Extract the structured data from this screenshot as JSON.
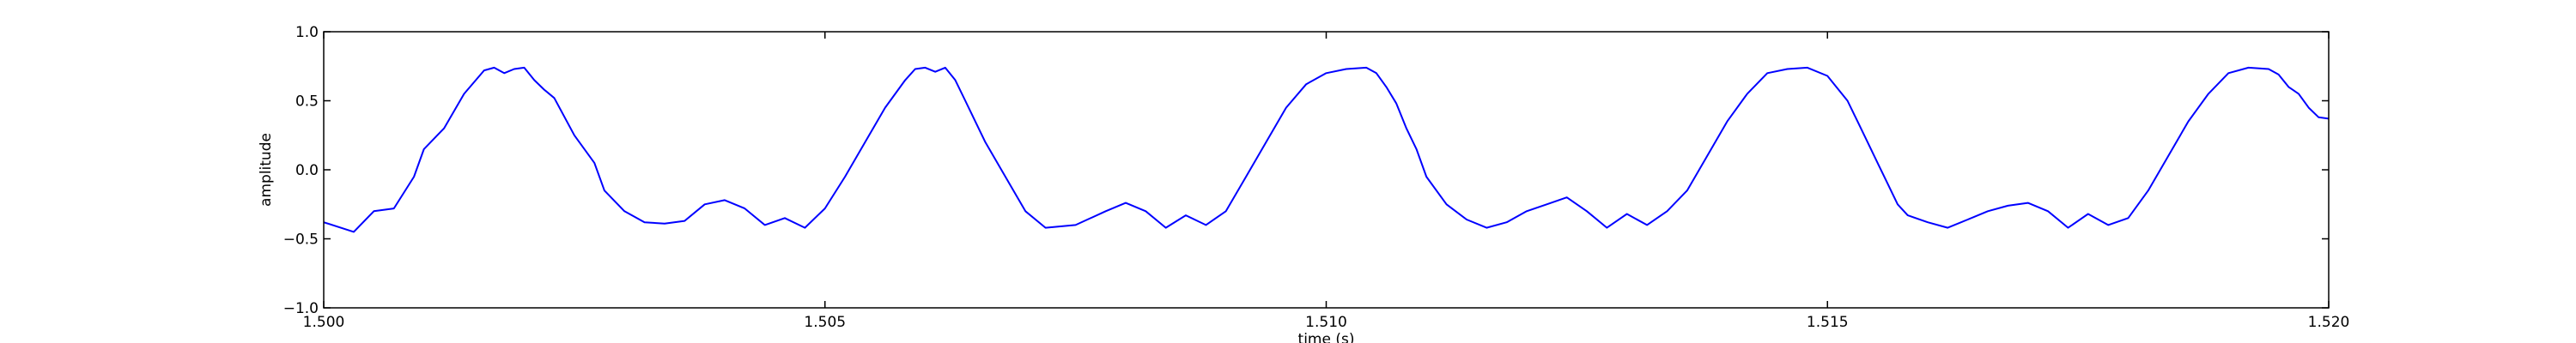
{
  "chart_data": {
    "type": "line",
    "title": "",
    "xlabel": "time (s)",
    "ylabel": "amplitude",
    "xlim": [
      1.5,
      1.52
    ],
    "ylim": [
      -1.0,
      1.0
    ],
    "xticks": [
      1.5,
      1.505,
      1.51,
      1.515,
      1.52
    ],
    "xtick_labels": [
      "1.500",
      "1.505",
      "1.510",
      "1.515",
      "1.520"
    ],
    "yticks": [
      -1.0,
      -0.5,
      0.0,
      0.5,
      1.0
    ],
    "ytick_labels": [
      "−1.0",
      "−0.5",
      "0.0",
      "0.5",
      "1.0"
    ],
    "grid": false,
    "line_color": "#0000ff",
    "series": [
      {
        "x": [
          1.5,
          1.5003,
          1.5005,
          1.5007,
          1.5009,
          1.501,
          1.5012,
          1.5014,
          1.5016,
          1.5017,
          1.5018,
          1.5019,
          1.502,
          1.5021,
          1.5022,
          1.5023,
          1.5025,
          1.5027,
          1.5028,
          1.503,
          1.5032,
          1.5034,
          1.5036,
          1.5038,
          1.504,
          1.5042,
          1.5044,
          1.5046,
          1.5048,
          1.505,
          1.5052,
          1.5054,
          1.5056,
          1.5058,
          1.5059,
          1.506,
          1.5061,
          1.5062,
          1.5063,
          1.5064,
          1.5066,
          1.5068,
          1.507,
          1.5072,
          1.5075,
          1.5078,
          1.508,
          1.5082,
          1.5084,
          1.5086,
          1.5088,
          1.509,
          1.5092,
          1.5094,
          1.5096,
          1.5098,
          1.51,
          1.5102,
          1.5104,
          1.5105,
          1.5106,
          1.5107,
          1.5108,
          1.5109,
          1.511,
          1.5112,
          1.5114,
          1.5116,
          1.5118,
          1.512,
          1.5122,
          1.5124,
          1.5126,
          1.5128,
          1.513,
          1.5132,
          1.5134,
          1.5136,
          1.5138,
          1.514,
          1.5142,
          1.5144,
          1.5146,
          1.5148,
          1.515,
          1.5152,
          1.5153,
          1.5154,
          1.5155,
          1.5156,
          1.5157,
          1.5158,
          1.516,
          1.5162,
          1.5164,
          1.5166,
          1.5168,
          1.517,
          1.5172,
          1.5174,
          1.5176,
          1.5178,
          1.518,
          1.5182,
          1.5184,
          1.5186,
          1.5188,
          1.519,
          1.5192,
          1.5194,
          1.5195,
          1.5196,
          1.5197,
          1.5198,
          1.5199,
          1.52
        ],
        "y": [
          -0.38,
          -0.45,
          -0.3,
          -0.28,
          -0.05,
          0.15,
          0.3,
          0.55,
          0.72,
          0.74,
          0.7,
          0.73,
          0.74,
          0.65,
          0.58,
          0.52,
          0.25,
          0.05,
          -0.15,
          -0.3,
          -0.38,
          -0.39,
          -0.37,
          -0.25,
          -0.22,
          -0.28,
          -0.4,
          -0.35,
          -0.42,
          -0.28,
          -0.05,
          0.2,
          0.45,
          0.65,
          0.73,
          0.74,
          0.71,
          0.74,
          0.65,
          0.5,
          0.2,
          -0.05,
          -0.3,
          -0.42,
          -0.4,
          -0.3,
          -0.24,
          -0.3,
          -0.42,
          -0.33,
          -0.4,
          -0.3,
          -0.05,
          0.2,
          0.45,
          0.62,
          0.7,
          0.73,
          0.74,
          0.7,
          0.6,
          0.48,
          0.3,
          0.15,
          -0.05,
          -0.25,
          -0.36,
          -0.42,
          -0.38,
          -0.3,
          -0.25,
          -0.2,
          -0.3,
          -0.42,
          -0.32,
          -0.4,
          -0.3,
          -0.15,
          0.1,
          0.35,
          0.55,
          0.7,
          0.73,
          0.74,
          0.68,
          0.5,
          0.35,
          0.2,
          0.05,
          -0.1,
          -0.25,
          -0.33,
          -0.38,
          -0.42,
          -0.36,
          -0.3,
          -0.26,
          -0.24,
          -0.3,
          -0.42,
          -0.32,
          -0.4,
          -0.35,
          -0.15,
          0.1,
          0.35,
          0.55,
          0.7,
          0.74,
          0.73,
          0.69,
          0.6,
          0.55,
          0.45,
          0.38,
          0.37
        ]
      }
    ]
  }
}
